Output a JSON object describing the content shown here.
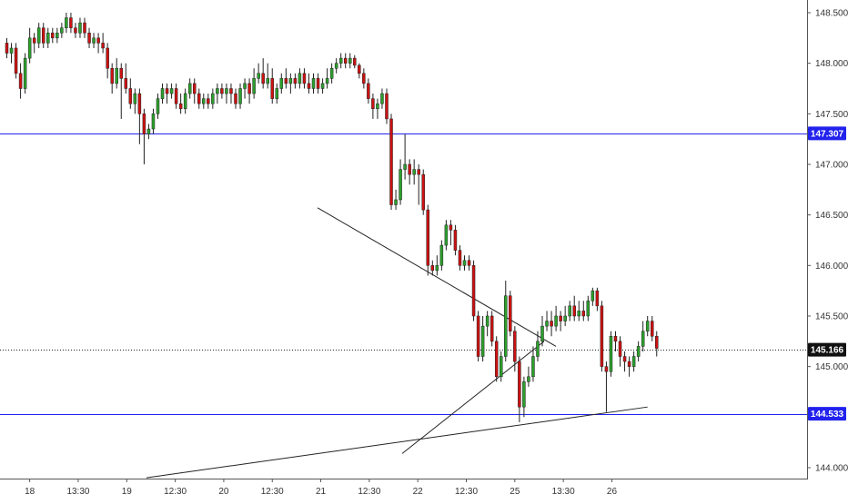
{
  "chart_data": {
    "type": "candlestick",
    "title": "",
    "xlabel": "",
    "ylabel": "",
    "ylim": [
      143.92,
      148.69
    ],
    "grid": false,
    "colors": {
      "up": "#2ca02c",
      "down": "#cc1111",
      "level_line": "#2222ee",
      "trendline": "#222222",
      "price_tag_dark": "#111111"
    },
    "y_ticks": [
      "148.500",
      "148.000",
      "147.500",
      "147.000",
      "146.500",
      "146.000",
      "145.500",
      "145.000",
      "144.000"
    ],
    "x_ticks": [
      {
        "label": "18",
        "bar": 5
      },
      {
        "label": "13:30",
        "bar": 15.6
      },
      {
        "label": "19",
        "bar": 26.2
      },
      {
        "label": "12:30",
        "bar": 36.8
      },
      {
        "label": "20",
        "bar": 47.4
      },
      {
        "label": "12:30",
        "bar": 58
      },
      {
        "label": "21",
        "bar": 68.6
      },
      {
        "label": "12:30",
        "bar": 79.2
      },
      {
        "label": "22",
        "bar": 89.8
      },
      {
        "label": "12:30",
        "bar": 100.4
      },
      {
        "label": "25",
        "bar": 111
      },
      {
        "label": "13:30",
        "bar": 121.6
      },
      {
        "label": "26",
        "bar": 132.2
      }
    ],
    "horizontal_levels": [
      {
        "value": 147.307,
        "label": "147.307",
        "style": "solid"
      },
      {
        "value": 144.533,
        "label": "144.533",
        "style": "solid"
      },
      {
        "value": 145.166,
        "label": "145.166",
        "style": "dotted",
        "current": true
      }
    ],
    "trendlines": [
      {
        "from": {
          "bar": 67.9,
          "price": 146.57
        },
        "to": {
          "bar": 120,
          "price": 145.2
        }
      },
      {
        "from": {
          "bar": 86.4,
          "price": 144.14
        },
        "to": {
          "bar": 117.4,
          "price": 145.25
        }
      },
      {
        "from": {
          "bar": 30.5,
          "price": 143.9
        },
        "to": {
          "bar": 140,
          "price": 144.6
        }
      }
    ],
    "candles": [
      [
        148.2,
        148.1,
        148.25,
        148.05
      ],
      [
        148.1,
        148.15,
        148.2,
        148.0
      ],
      [
        148.15,
        147.9,
        148.2,
        147.85
      ],
      [
        147.9,
        147.75,
        148.0,
        147.65
      ],
      [
        147.75,
        148.05,
        148.1,
        147.7
      ],
      [
        148.05,
        148.25,
        148.35,
        148.0
      ],
      [
        148.25,
        148.2,
        148.3,
        148.1
      ],
      [
        148.2,
        148.35,
        148.4,
        148.15
      ],
      [
        148.35,
        148.2,
        148.4,
        148.15
      ],
      [
        148.2,
        148.3,
        148.35,
        148.15
      ],
      [
        148.3,
        148.25,
        148.35,
        148.2
      ],
      [
        148.25,
        148.3,
        148.35,
        148.2
      ],
      [
        148.3,
        148.35,
        148.4,
        148.25
      ],
      [
        148.35,
        148.45,
        148.5,
        148.3
      ],
      [
        148.45,
        148.35,
        148.5,
        148.3
      ],
      [
        148.35,
        148.3,
        148.4,
        148.25
      ],
      [
        148.3,
        148.4,
        148.45,
        148.25
      ],
      [
        148.4,
        148.3,
        148.45,
        148.25
      ],
      [
        148.3,
        148.2,
        148.35,
        148.15
      ],
      [
        148.2,
        148.25,
        148.3,
        148.15
      ],
      [
        148.25,
        148.2,
        148.3,
        148.1
      ],
      [
        148.2,
        148.15,
        148.3,
        148.1
      ],
      [
        148.15,
        147.95,
        148.2,
        147.85
      ],
      [
        147.95,
        147.8,
        148.0,
        147.7
      ],
      [
        147.8,
        147.95,
        148.05,
        147.75
      ],
      [
        147.95,
        147.85,
        148.0,
        147.45
      ],
      [
        147.85,
        147.75,
        148.0,
        147.7
      ],
      [
        147.75,
        147.6,
        147.85,
        147.55
      ],
      [
        147.6,
        147.7,
        147.75,
        147.5
      ],
      [
        147.7,
        147.5,
        147.75,
        147.2
      ],
      [
        147.5,
        147.3,
        147.55,
        147.0
      ],
      [
        147.3,
        147.35,
        147.4,
        147.25
      ],
      [
        147.35,
        147.5,
        147.55,
        147.3
      ],
      [
        147.5,
        147.65,
        147.7,
        147.45
      ],
      [
        147.65,
        147.75,
        147.8,
        147.6
      ],
      [
        147.75,
        147.7,
        147.8,
        147.6
      ],
      [
        147.7,
        147.75,
        147.8,
        147.65
      ],
      [
        147.75,
        147.6,
        147.8,
        147.55
      ],
      [
        147.6,
        147.55,
        147.7,
        147.5
      ],
      [
        147.55,
        147.7,
        147.75,
        147.5
      ],
      [
        147.7,
        147.8,
        147.85,
        147.65
      ],
      [
        147.8,
        147.7,
        147.85,
        147.6
      ],
      [
        147.7,
        147.6,
        147.75,
        147.55
      ],
      [
        147.6,
        147.65,
        147.7,
        147.55
      ],
      [
        147.65,
        147.6,
        147.7,
        147.55
      ],
      [
        147.6,
        147.7,
        147.75,
        147.55
      ],
      [
        147.7,
        147.75,
        147.8,
        147.6
      ],
      [
        147.75,
        147.7,
        147.8,
        147.65
      ],
      [
        147.7,
        147.75,
        147.8,
        147.6
      ],
      [
        147.75,
        147.7,
        147.8,
        147.6
      ],
      [
        147.7,
        147.6,
        147.75,
        147.55
      ],
      [
        147.6,
        147.75,
        147.8,
        147.55
      ],
      [
        147.75,
        147.8,
        147.85,
        147.65
      ],
      [
        147.8,
        147.7,
        147.85,
        147.6
      ],
      [
        147.7,
        147.85,
        147.95,
        147.65
      ],
      [
        147.85,
        147.9,
        148.0,
        147.8
      ],
      [
        147.9,
        147.8,
        148.05,
        147.75
      ],
      [
        147.8,
        147.85,
        148.0,
        147.75
      ],
      [
        147.85,
        147.65,
        147.95,
        147.6
      ],
      [
        147.65,
        147.75,
        147.8,
        147.6
      ],
      [
        147.75,
        147.85,
        147.9,
        147.7
      ],
      [
        147.85,
        147.8,
        147.95,
        147.75
      ],
      [
        147.8,
        147.85,
        147.9,
        147.7
      ],
      [
        147.85,
        147.8,
        147.9,
        147.75
      ],
      [
        147.8,
        147.9,
        147.95,
        147.75
      ],
      [
        147.9,
        147.8,
        147.95,
        147.75
      ],
      [
        147.8,
        147.75,
        147.9,
        147.7
      ],
      [
        147.75,
        147.85,
        147.9,
        147.7
      ],
      [
        147.85,
        147.75,
        147.9,
        147.7
      ],
      [
        147.75,
        147.8,
        147.85,
        147.7
      ],
      [
        147.8,
        147.85,
        147.95,
        147.75
      ],
      [
        147.85,
        147.95,
        148.0,
        147.8
      ],
      [
        147.95,
        148.0,
        148.05,
        147.9
      ],
      [
        148.0,
        148.05,
        148.1,
        147.95
      ],
      [
        148.05,
        148.0,
        148.1,
        147.95
      ],
      [
        148.0,
        148.05,
        148.1,
        147.95
      ],
      [
        148.05,
        147.98,
        148.08,
        147.95
      ],
      [
        147.98,
        147.9,
        148.0,
        147.85
      ],
      [
        147.9,
        147.8,
        147.95,
        147.75
      ],
      [
        147.8,
        147.65,
        147.85,
        147.6
      ],
      [
        147.65,
        147.55,
        147.7,
        147.45
      ],
      [
        147.55,
        147.6,
        147.65,
        147.45
      ],
      [
        147.6,
        147.7,
        147.75,
        147.55
      ],
      [
        147.7,
        147.45,
        147.75,
        147.4
      ],
      [
        147.45,
        146.6,
        147.5,
        146.55
      ],
      [
        146.6,
        146.65,
        146.75,
        146.55
      ],
      [
        146.65,
        146.95,
        147.05,
        146.6
      ],
      [
        146.95,
        147.0,
        147.3,
        146.85
      ],
      [
        147.0,
        146.9,
        147.05,
        146.8
      ],
      [
        146.9,
        146.95,
        147.05,
        146.8
      ],
      [
        146.95,
        146.9,
        147.0,
        146.6
      ],
      [
        146.9,
        146.55,
        146.95,
        146.5
      ],
      [
        146.55,
        146.0,
        146.6,
        145.9
      ],
      [
        146.0,
        145.95,
        146.05,
        145.9
      ],
      [
        145.95,
        146.0,
        146.1,
        145.9
      ],
      [
        146.0,
        146.2,
        146.25,
        145.95
      ],
      [
        146.2,
        146.4,
        146.45,
        146.15
      ],
      [
        146.4,
        146.35,
        146.45,
        146.2
      ],
      [
        146.35,
        146.15,
        146.4,
        146.1
      ],
      [
        146.15,
        146.0,
        146.2,
        145.95
      ],
      [
        146.0,
        146.05,
        146.1,
        145.95
      ],
      [
        146.05,
        146.0,
        146.1,
        145.95
      ],
      [
        146.0,
        145.5,
        146.05,
        145.45
      ],
      [
        145.5,
        145.1,
        145.55,
        145.05
      ],
      [
        145.1,
        145.4,
        145.5,
        145.05
      ],
      [
        145.4,
        145.5,
        145.55,
        145.3
      ],
      [
        145.5,
        145.25,
        145.55,
        145.2
      ],
      [
        145.25,
        144.9,
        145.3,
        144.85
      ],
      [
        144.9,
        145.1,
        145.15,
        144.85
      ],
      [
        145.1,
        145.7,
        145.85,
        145.05
      ],
      [
        145.7,
        145.35,
        145.75,
        145.3
      ],
      [
        145.35,
        145.05,
        145.4,
        144.95
      ],
      [
        145.05,
        144.6,
        145.1,
        144.45
      ],
      [
        144.6,
        144.85,
        144.9,
        144.5
      ],
      [
        144.85,
        144.9,
        145.0,
        144.8
      ],
      [
        144.9,
        145.1,
        145.2,
        144.85
      ],
      [
        145.1,
        145.25,
        145.35,
        145.05
      ],
      [
        145.25,
        145.4,
        145.5,
        145.2
      ],
      [
        145.4,
        145.45,
        145.55,
        145.35
      ],
      [
        145.45,
        145.4,
        145.55,
        145.3
      ],
      [
        145.4,
        145.5,
        145.6,
        145.35
      ],
      [
        145.5,
        145.45,
        145.55,
        145.35
      ],
      [
        145.45,
        145.5,
        145.6,
        145.4
      ],
      [
        145.5,
        145.6,
        145.65,
        145.45
      ],
      [
        145.6,
        145.5,
        145.7,
        145.45
      ],
      [
        145.5,
        145.55,
        145.65,
        145.45
      ],
      [
        145.55,
        145.5,
        145.65,
        145.45
      ],
      [
        145.5,
        145.65,
        145.7,
        145.45
      ],
      [
        145.65,
        145.75,
        145.78,
        145.6
      ],
      [
        145.75,
        145.6,
        145.78,
        145.55
      ],
      [
        145.6,
        145.0,
        145.65,
        144.95
      ],
      [
        145.0,
        144.95,
        145.05,
        144.55
      ],
      [
        144.95,
        145.3,
        145.35,
        144.9
      ],
      [
        145.3,
        145.25,
        145.35,
        145.15
      ],
      [
        145.25,
        145.1,
        145.3,
        145.0
      ],
      [
        145.1,
        145.05,
        145.15,
        144.95
      ],
      [
        145.05,
        145.0,
        145.1,
        144.9
      ],
      [
        145.0,
        145.1,
        145.15,
        144.95
      ],
      [
        145.1,
        145.2,
        145.25,
        145.05
      ],
      [
        145.2,
        145.35,
        145.45,
        145.15
      ],
      [
        145.35,
        145.45,
        145.5,
        145.3
      ],
      [
        145.45,
        145.3,
        145.5,
        145.25
      ],
      [
        145.3,
        145.18,
        145.35,
        145.1
      ]
    ]
  }
}
